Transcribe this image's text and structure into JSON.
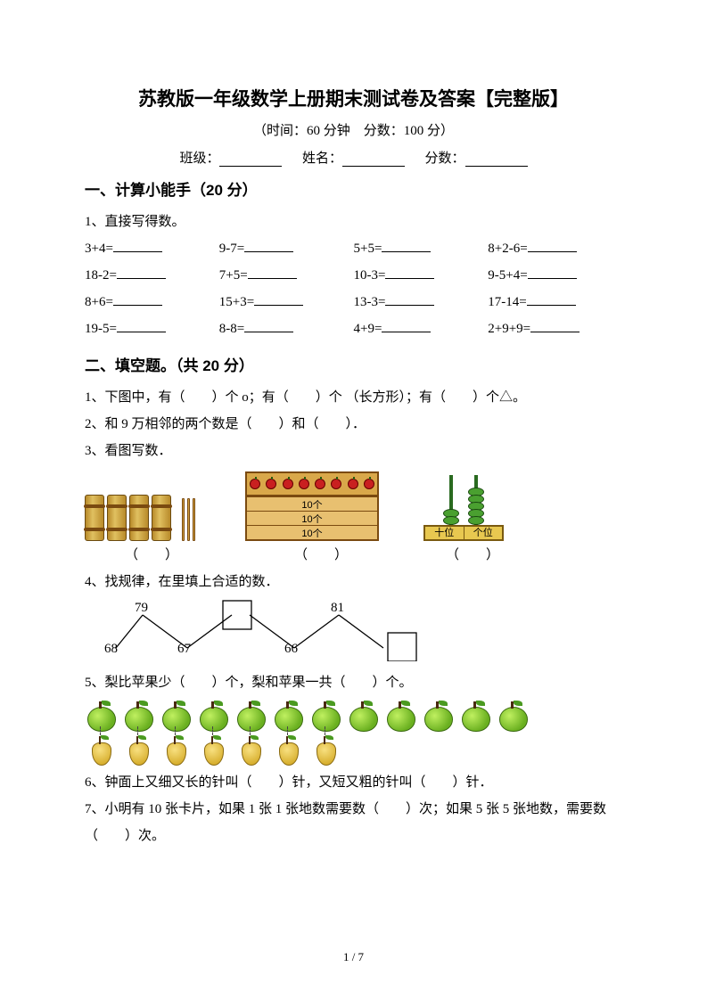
{
  "title": "苏教版一年级数学上册期末测试卷及答案【完整版】",
  "subtitle": "（时间：60 分钟　分数：100 分）",
  "info": {
    "class_label": "班级：",
    "name_label": "姓名：",
    "score_label": "分数："
  },
  "section1": {
    "header": "一、计算小能手（20 分）",
    "sub1": "1、直接写得数。",
    "rows": [
      [
        "3+4=",
        "9-7=",
        "5+5=",
        "8+2-6="
      ],
      [
        "18-2=",
        "7+5=",
        "10-3=",
        "9-5+4="
      ],
      [
        "8+6=",
        "15+3=",
        "13-3=",
        "17-14="
      ],
      [
        "19-5=",
        "8-8=",
        "4+9=",
        "2+9+9="
      ]
    ]
  },
  "section2": {
    "header": "二、填空题。（共 20 分）",
    "q1": "1、下图中，有（　　）个 o；有（　　）个 （长方形）；有（　　）个△。",
    "q2": "2、和 9 万相邻的两个数是（　　）和（　　）．",
    "q3": "3、看图写数．",
    "q3_crate_label": "10个",
    "q3_abacus_labels": [
      "十位",
      "个位"
    ],
    "q3_answer_label": "（　　）",
    "q4": "4、找规律，在里填上合适的数．",
    "q4_numbers": {
      "a1": "68",
      "a2": "79",
      "a3": "67",
      "a4": "66",
      "a5": "81"
    },
    "q5": "5、梨比苹果少（　　）个，梨和苹果一共（　　）个。",
    "q5_apples": 12,
    "q5_pears": 7,
    "q6": "6、钟面上又细又长的针叫（　　）针，又短又粗的针叫（　　）针．",
    "q7": "7、小明有 10 张卡片，如果 1 张 1 张地数需要数（　　）次；如果 5 张 5 张地数，需要数（　　）次。"
  },
  "page_number": "1 / 7",
  "colors": {
    "text": "#000000",
    "bg": "#ffffff",
    "bundle": "#b88a2a",
    "crate": "#d9a84a",
    "apple": "#c92020",
    "green_apple": "#6ab020",
    "pear": "#d8b030",
    "abacus_bead": "#4aa030",
    "abacus_base": "#e8c850"
  }
}
